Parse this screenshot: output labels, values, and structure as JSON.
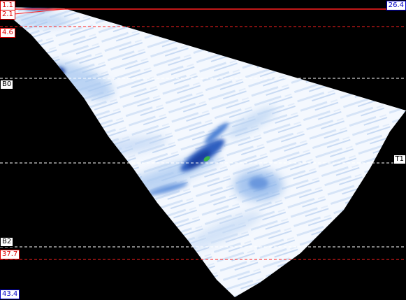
{
  "scan": {
    "top_left_marker": "1.1",
    "top_right_value": "26.4",
    "bottom_left_value": "43.4",
    "cursors": [
      {
        "label": "2.1",
        "kind": "red"
      },
      {
        "label": "4.6",
        "kind": "red"
      },
      {
        "label": "B0",
        "kind": "black"
      },
      {
        "label": "T1",
        "kind": "black"
      },
      {
        "label": "B2",
        "kind": "black"
      },
      {
        "label": "37.7",
        "kind": "red"
      }
    ]
  },
  "colors": {
    "background": "#000000",
    "sector_base": "#eef4fc",
    "echo_light": "#a8c8f0",
    "echo_mid": "#4a7fd4",
    "echo_strong": "#1a3fa0",
    "echo_peak": "#3cb44a",
    "gate_red": "#ff2020",
    "gate_white": "#ffffff"
  }
}
